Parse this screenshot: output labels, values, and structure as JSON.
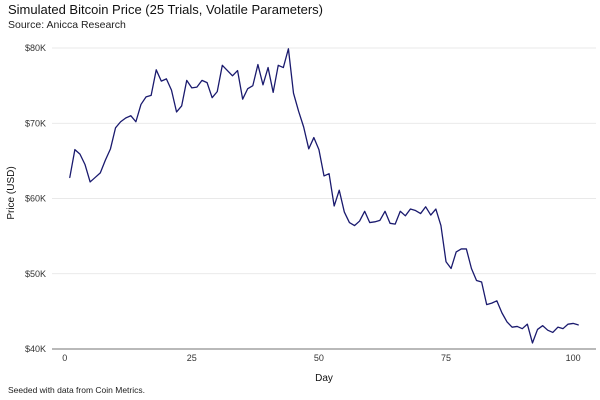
{
  "chart_data": {
    "type": "line",
    "title": "Simulated Bitcoin Price (25 Trials, Volatile Parameters)",
    "subtitle": "Source: Anicca Research",
    "caption": "Seeded with data from Coin Metrics.",
    "xlabel": "Day",
    "ylabel": "Price (USD)",
    "xlim": [
      -2.5,
      104.5
    ],
    "ylim": [
      40000,
      80000
    ],
    "x_ticks": [
      0,
      25,
      50,
      75,
      100
    ],
    "x_tick_labels": [
      "0",
      "25",
      "50",
      "75",
      "100"
    ],
    "y_ticks": [
      40000,
      50000,
      60000,
      70000,
      80000
    ],
    "y_tick_labels": [
      "$40K",
      "$50K",
      "$60K",
      "$70K",
      "$80K"
    ],
    "grid": {
      "horizontal": true,
      "vertical": false
    },
    "line_color": "#1a1a6e",
    "series": [
      {
        "x": [
          1,
          2,
          3,
          4,
          5,
          6,
          7,
          8,
          9,
          10,
          11,
          12,
          13,
          14,
          15,
          16,
          17,
          18,
          19,
          20,
          21,
          22,
          23,
          24,
          25,
          26,
          27,
          28,
          29,
          30,
          31,
          32,
          33,
          34,
          35,
          36,
          37,
          38,
          39,
          40,
          41,
          42,
          43,
          44,
          45,
          46,
          47,
          48,
          49,
          50,
          51,
          52,
          53,
          54,
          55,
          56,
          57,
          58,
          59,
          60,
          61,
          62,
          63,
          64,
          65,
          66,
          67,
          68,
          69,
          70,
          71,
          72,
          73,
          74,
          75,
          76,
          77,
          78,
          79,
          80,
          81,
          82,
          83,
          84,
          85,
          86,
          87,
          88,
          89,
          90,
          91,
          92,
          93,
          94,
          95,
          96,
          97,
          98,
          99,
          100,
          101
        ],
        "values": [
          62800,
          66500,
          65900,
          64500,
          62200,
          62800,
          63400,
          65100,
          66600,
          69400,
          70200,
          70700,
          71000,
          70200,
          72500,
          73500,
          73700,
          77100,
          75600,
          75900,
          74400,
          71500,
          72300,
          75700,
          74700,
          74800,
          75700,
          75400,
          73400,
          74200,
          77700,
          77000,
          76300,
          77000,
          73200,
          74600,
          75000,
          77800,
          75100,
          77400,
          74100,
          77700,
          77400,
          79900,
          74000,
          71600,
          69500,
          66600,
          68100,
          66500,
          63000,
          63300,
          59000,
          61100,
          58200,
          56800,
          56400,
          57000,
          58300,
          56800,
          56900,
          57100,
          58300,
          56700,
          56600,
          58300,
          57700,
          58600,
          58400,
          58000,
          58900,
          57800,
          58600,
          56400,
          51600,
          50700,
          52900,
          53300,
          53300,
          50700,
          49100,
          48900,
          45900,
          46100,
          46400,
          44800,
          43600,
          42900,
          43000,
          42700,
          43300,
          40800,
          42600,
          43100,
          42500,
          42200,
          42900,
          42700,
          43300,
          43400,
          43200
        ]
      }
    ]
  }
}
